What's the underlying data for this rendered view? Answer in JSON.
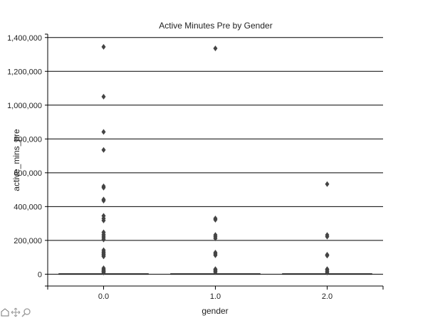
{
  "toolbar": {
    "tools": [
      {
        "name": "home-icon"
      },
      {
        "name": "pan-icon"
      },
      {
        "name": "zoom-icon"
      }
    ]
  },
  "chart_data": {
    "type": "box",
    "title": "Active Minutes Pre by Gender",
    "xlabel": "gender",
    "ylabel": "active_mins_pre",
    "categories": [
      "0.0",
      "1.0",
      "2.0"
    ],
    "y_ticks": [
      0,
      200000,
      400000,
      600000,
      800000,
      1000000,
      1200000,
      1400000
    ],
    "y_tick_labels": [
      "0",
      "200,000",
      "400,000",
      "600,000",
      "800,000",
      "1,000,000",
      "1,200,000",
      "1,400,000"
    ],
    "ylim": [
      -70000,
      1420000
    ],
    "grid": true,
    "boxes": [
      {
        "category": "0.0",
        "q1": 0,
        "median": 1000,
        "q3": 3000,
        "whisker_low": 0,
        "whisker_high": 6000,
        "outliers": [
          1345000,
          1050000,
          842000,
          735000,
          520000,
          512000,
          442000,
          435000,
          345000,
          330000,
          318000,
          248000,
          235000,
          225000,
          215000,
          205000,
          142000,
          132000,
          125000,
          118000,
          112000,
          105000,
          35000,
          28000,
          22000,
          18000,
          14000,
          10000
        ]
      },
      {
        "category": "1.0",
        "q1": 0,
        "median": 1000,
        "q3": 3000,
        "whisker_low": 0,
        "whisker_high": 6000,
        "outliers": [
          1336000,
          330000,
          322000,
          232000,
          222000,
          212000,
          128000,
          120000,
          112000,
          30000,
          24000,
          18000,
          12000
        ]
      },
      {
        "category": "2.0",
        "q1": 0,
        "median": 1000,
        "q3": 3000,
        "whisker_low": 0,
        "whisker_high": 6000,
        "outliers": [
          533000,
          232000,
          222000,
          115000,
          110000,
          30000,
          24000,
          16000,
          10000
        ]
      }
    ],
    "colors": {
      "marker": "#444444",
      "grid": "#000000",
      "box": "#222222"
    }
  }
}
